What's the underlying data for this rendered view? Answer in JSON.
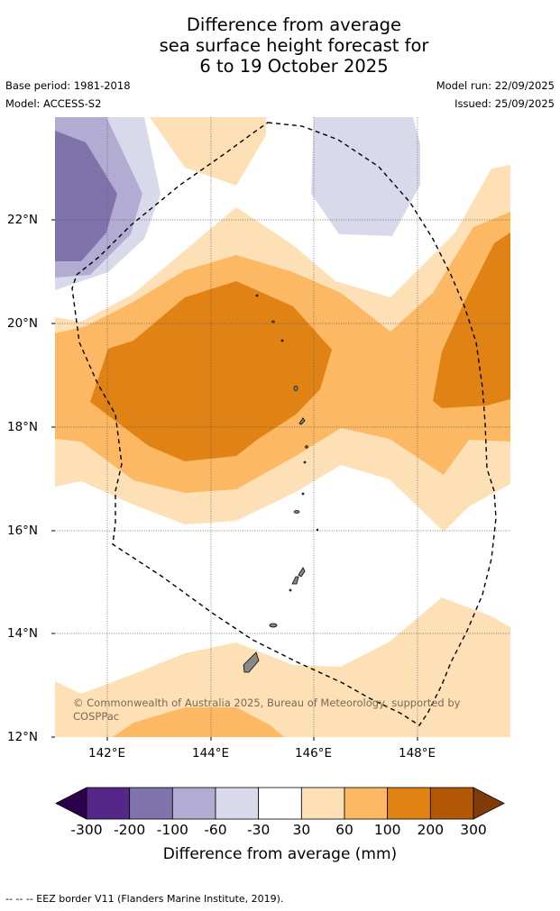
{
  "title": {
    "line1": "Difference from average",
    "line2": "sea surface height forecast for",
    "line3": "6 to 19 October 2025"
  },
  "meta": {
    "base_period": "Base period: 1981-2018",
    "model": "Model: ACCESS-S2",
    "model_run": "Model run: 22/09/2025",
    "issued": "Issued: 25/09/2025"
  },
  "map": {
    "lat_labels": [
      "22°N",
      "20°N",
      "18°N",
      "16°N",
      "14°N",
      "12°N"
    ],
    "lon_labels": [
      "142°E",
      "144°E",
      "146°E",
      "148°E"
    ],
    "copyright": "© Commonwealth of Australia 2025, Bureau of Meteorology, supported by COSPPac",
    "footnote": "--  --  -- EEZ border V11 (Flanders Marine Institute, 2019)."
  },
  "colorbar": {
    "title": "Difference from average (mm)",
    "labels": [
      "-300",
      "-200",
      "-100",
      "-60",
      "-30",
      "30",
      "60",
      "100",
      "200",
      "300"
    ],
    "colors": [
      "#2d004b",
      "#542788",
      "#8073ac",
      "#b2abd2",
      "#d8daeb",
      "#ffffff",
      "#fee0b6",
      "#fdb863",
      "#e08214",
      "#b35806",
      "#7f3b08"
    ]
  }
}
